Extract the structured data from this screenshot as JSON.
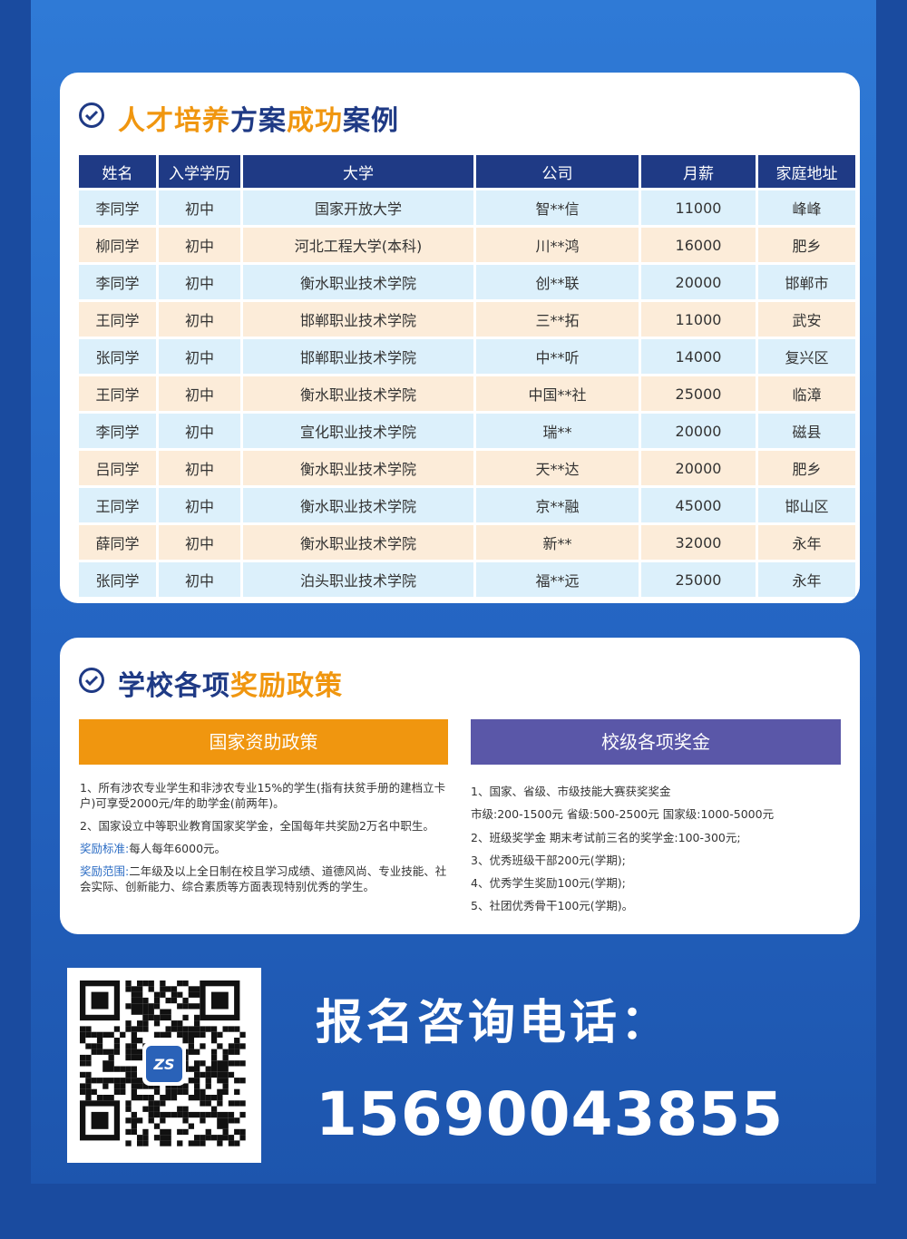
{
  "cases": {
    "title": [
      "人才培养",
      "方案",
      "成功",
      "案例"
    ],
    "headers": [
      "姓名",
      "入学学历",
      "大学",
      "公司",
      "月薪",
      "家庭地址"
    ],
    "rows": [
      [
        "李同学",
        "初中",
        "国家开放大学",
        "智**信",
        "11000",
        "峰峰"
      ],
      [
        "柳同学",
        "初中",
        "河北工程大学(本科)",
        "川**鸿",
        "16000",
        "肥乡"
      ],
      [
        "李同学",
        "初中",
        "衡水职业技术学院",
        "创**联",
        "20000",
        "邯郸市"
      ],
      [
        "王同学",
        "初中",
        "邯郸职业技术学院",
        "三**拓",
        "11000",
        "武安"
      ],
      [
        "张同学",
        "初中",
        "邯郸职业技术学院",
        "中**听",
        "14000",
        "复兴区"
      ],
      [
        "王同学",
        "初中",
        "衡水职业技术学院",
        "中国**社",
        "25000",
        "临漳"
      ],
      [
        "李同学",
        "初中",
        "宣化职业技术学院",
        "瑞**",
        "20000",
        "磁县"
      ],
      [
        "吕同学",
        "初中",
        "衡水职业技术学院",
        "天**达",
        "20000",
        "肥乡"
      ],
      [
        "王同学",
        "初中",
        "衡水职业技术学院",
        "京**融",
        "45000",
        "邯山区"
      ],
      [
        "薛同学",
        "初中",
        "衡水职业技术学院",
        "新**",
        "32000",
        "永年"
      ],
      [
        "张同学",
        "初中",
        "泊头职业技术学院",
        "福**远",
        "25000",
        "永年"
      ]
    ]
  },
  "policy": {
    "title": [
      "学校各项",
      "奖励政策"
    ],
    "national": {
      "heading": "国家资助政策",
      "items": [
        {
          "text": "1、所有涉农专业学生和非涉农专业15%的学生(指有扶贫手册的建档立卡户)可享受2000元/年的助学金(前两年)。"
        },
        {
          "text": "2、国家设立中等职业教育国家奖学金，全国每年共奖励2万名中职生。"
        },
        {
          "label": "奖励标准:",
          "text": "每人每年6000元。"
        },
        {
          "label": "奖励范围:",
          "text": "二年级及以上全日制在校且学习成绩、道德风尚、专业技能、社会实际、创新能力、综合素质等方面表现特别优秀的学生。"
        }
      ]
    },
    "school": {
      "heading": "校级各项奖金",
      "items": [
        "1、国家、省级、市级技能大赛获奖奖金",
        "市级:200-1500元  省级:500-2500元  国家级:1000-5000元",
        "2、班级奖学金 期末考试前三名的奖学金:100-300元;",
        "3、优秀班级干部200元(学期);",
        "4、优秀学生奖励100元(学期);",
        "5、社团优秀骨干100元(学期)。"
      ]
    }
  },
  "contact": {
    "label": "报名咨询电话：",
    "phone": "15690043855",
    "qr_logo": "ZS"
  }
}
